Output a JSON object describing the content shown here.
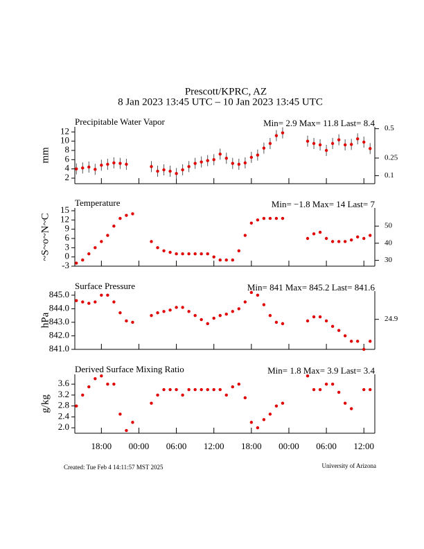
{
  "header": {
    "title": "Prescott/KPRC, AZ",
    "subtitle": "8 Jan 2023 13:45 UTC – 10 Jan 2023 13:45 UTC"
  },
  "footer": {
    "created": "Created: Tue Feb  4 14:11:57 MST 2025",
    "credit": "University of Arizona"
  },
  "chart_data": [
    {
      "type": "scatter",
      "title": "Precipitable Water Vapor",
      "annotation": "Min= 2.9 Max= 11.8 Last= 8.4",
      "ylabel": "mm",
      "color": "#e00000",
      "x": [
        14,
        15,
        16,
        17,
        18,
        19,
        20,
        21,
        22,
        23,
        24,
        25,
        26,
        27,
        28,
        29,
        30,
        31,
        32,
        33,
        34,
        35,
        36,
        37,
        38,
        39,
        40,
        41,
        42,
        43,
        44,
        45,
        46,
        47,
        48,
        49,
        50,
        51,
        52,
        53,
        54,
        55,
        56,
        57,
        58,
        59,
        60,
        61
      ],
      "values": [
        4.0,
        4.2,
        4.4,
        3.9,
        4.8,
        5.0,
        5.3,
        5.2,
        5.0,
        null,
        null,
        null,
        4.5,
        3.5,
        3.8,
        3.5,
        3.0,
        3.8,
        4.5,
        5.2,
        5.5,
        5.8,
        6.0,
        7.2,
        6.3,
        5.2,
        5.0,
        5.3,
        6.5,
        7.0,
        8.5,
        9.5,
        11.2,
        11.8,
        null,
        null,
        null,
        10.0,
        9.5,
        9.2,
        8.0,
        9.5,
        10.3,
        9.2,
        9.3,
        10.5,
        9.8,
        8.4
      ],
      "errors": [
        1.2,
        1.2,
        1.2,
        1.2,
        1.2,
        1.2,
        1.2,
        1.2,
        1.2,
        null,
        null,
        null,
        1.2,
        1.2,
        1.2,
        1.2,
        1.2,
        1.2,
        1.2,
        1.2,
        1.2,
        1.2,
        1.2,
        1.2,
        1.2,
        1.2,
        1.2,
        1.2,
        1.2,
        1.2,
        1.2,
        1.2,
        1.2,
        1.2,
        null,
        null,
        null,
        1.2,
        1.2,
        1.2,
        1.2,
        1.2,
        1.2,
        1.2,
        1.2,
        1.2,
        1.2,
        1.2
      ],
      "xlim": [
        13.75,
        61.75
      ],
      "ylim": [
        0.8,
        13.1
      ],
      "yticks": [
        2,
        4,
        6,
        8,
        10,
        12
      ],
      "y2lim": [
        0.0315,
        0.5157
      ],
      "y2ticks": [
        0.1,
        0.25,
        0.5
      ]
    },
    {
      "type": "scatter",
      "title": "Temperature",
      "annotation": "Min= −1.8 Max= 14 Last= 7",
      "ylabel": "~S~o~N~C",
      "color": "#e00000",
      "x": [
        14,
        15,
        16,
        17,
        18,
        19,
        20,
        21,
        22,
        23,
        24,
        25,
        26,
        27,
        28,
        29,
        30,
        31,
        32,
        33,
        34,
        35,
        36,
        37,
        38,
        39,
        40,
        41,
        42,
        43,
        44,
        45,
        46,
        47,
        48,
        49,
        50,
        51,
        52,
        53,
        54,
        55,
        56,
        57,
        58,
        59,
        60,
        61
      ],
      "values": [
        -2,
        -1,
        1,
        3,
        5,
        7,
        10,
        12.5,
        13.5,
        14,
        null,
        null,
        5,
        3,
        2,
        1.5,
        1,
        1,
        1,
        1,
        1,
        1,
        0,
        -1,
        -1,
        -1,
        2,
        7,
        11,
        12,
        12.5,
        12.5,
        12.5,
        12.5,
        null,
        null,
        null,
        6,
        7.5,
        8,
        6,
        5,
        5,
        5,
        5.5,
        6.5,
        6,
        7
      ],
      "xlim": [
        13.75,
        61.75
      ],
      "ylim": [
        -3,
        15.9
      ],
      "yticks": [
        -3,
        0,
        3,
        6,
        9,
        12,
        15
      ],
      "y2lim": [
        26.6,
        60.6
      ],
      "y2ticks": [
        30,
        40,
        50
      ]
    },
    {
      "type": "scatter",
      "title": "Surface Pressure",
      "annotation": "Min= 841 Max= 845.2 Last= 841.6",
      "ylabel": "hPa",
      "color": "#e00000",
      "x": [
        14,
        15,
        16,
        17,
        18,
        19,
        20,
        21,
        22,
        23,
        24,
        25,
        26,
        27,
        28,
        29,
        30,
        31,
        32,
        33,
        34,
        35,
        36,
        37,
        38,
        39,
        40,
        41,
        42,
        43,
        44,
        45,
        46,
        47,
        48,
        49,
        50,
        51,
        52,
        53,
        54,
        55,
        56,
        57,
        58,
        59,
        60,
        61
      ],
      "values": [
        844.6,
        844.5,
        844.4,
        844.5,
        845.0,
        845.0,
        844.5,
        843.7,
        843.1,
        843.0,
        null,
        null,
        843.5,
        843.7,
        843.8,
        843.9,
        844.1,
        844.1,
        843.8,
        843.5,
        843.2,
        842.9,
        843.3,
        843.5,
        843.6,
        843.8,
        844.0,
        844.5,
        845.2,
        845.0,
        844.3,
        843.5,
        843.0,
        842.9,
        null,
        null,
        null,
        843.1,
        843.4,
        843.4,
        843.1,
        842.7,
        842.4,
        842.0,
        841.6,
        841.6,
        841.0,
        841.6
      ],
      "xlim": [
        13.75,
        61.75
      ],
      "ylim": [
        841,
        845.3
      ],
      "yticks": [
        {
          "value": 841,
          "label": "841.0"
        },
        {
          "value": 842,
          "label": "842.0"
        },
        {
          "value": 843,
          "label": "843.0"
        },
        {
          "value": 844,
          "label": "844.0"
        },
        {
          "value": 845,
          "label": "845.0"
        }
      ],
      "y2lim": [
        24.834,
        24.962
      ],
      "y2ticks": [
        24.9
      ]
    },
    {
      "type": "scatter",
      "title": "Derived Surface Mixing Ratio",
      "annotation": "Min= 1.8 Max= 3.9 Last= 3.4",
      "ylabel": "g/kg",
      "color": "#e00000",
      "x": [
        14,
        15,
        16,
        17,
        18,
        19,
        20,
        21,
        22,
        23,
        24,
        25,
        26,
        27,
        28,
        29,
        30,
        31,
        32,
        33,
        34,
        35,
        36,
        37,
        38,
        39,
        40,
        41,
        42,
        43,
        44,
        45,
        46,
        47,
        48,
        49,
        50,
        51,
        52,
        53,
        54,
        55,
        56,
        57,
        58,
        59,
        60,
        61
      ],
      "values": [
        2.8,
        3.2,
        3.5,
        3.8,
        3.9,
        3.6,
        3.6,
        2.5,
        1.9,
        2.2,
        null,
        null,
        2.9,
        3.2,
        3.4,
        3.4,
        3.4,
        3.2,
        3.4,
        3.4,
        3.4,
        3.4,
        3.4,
        3.4,
        3.2,
        3.5,
        3.6,
        3.1,
        2.2,
        2.0,
        2.3,
        2.5,
        2.8,
        2.9,
        null,
        null,
        null,
        3.9,
        3.4,
        3.4,
        3.6,
        3.6,
        3.3,
        2.9,
        2.7,
        null,
        3.4,
        3.4
      ],
      "xlim": [
        13.75,
        61.75
      ],
      "ylim": [
        1.8,
        3.96
      ],
      "yticks": [
        {
          "value": 2.0,
          "label": "2.0"
        },
        {
          "value": 2.4,
          "label": "2.4"
        },
        {
          "value": 2.8,
          "label": "2.8"
        },
        {
          "value": 3.2,
          "label": "3.2"
        },
        {
          "value": 3.6,
          "label": "3.6"
        }
      ],
      "xticks": [
        {
          "value": 18,
          "label": "18:00"
        },
        {
          "value": 24,
          "label": "00:00"
        },
        {
          "value": 30,
          "label": "06:00"
        },
        {
          "value": 36,
          "label": "12:00"
        },
        {
          "value": 42,
          "label": "18:00"
        },
        {
          "value": 48,
          "label": "00:00"
        },
        {
          "value": 54,
          "label": "06:00"
        },
        {
          "value": 60,
          "label": "12:00"
        }
      ]
    }
  ]
}
